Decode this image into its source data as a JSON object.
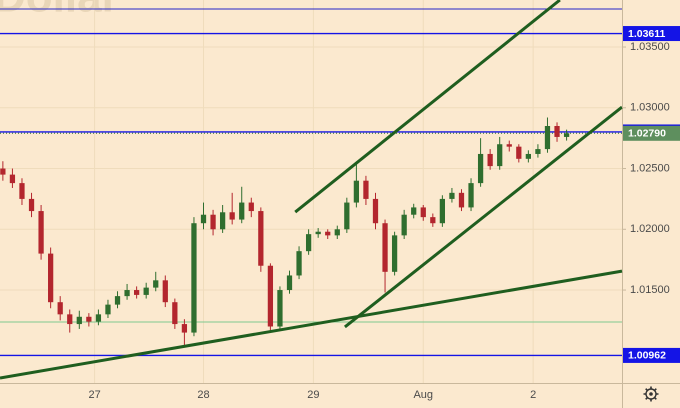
{
  "chart_data": {
    "type": "candlestick",
    "watermark": "Dollar",
    "ylim": [
      1.00735,
      1.03887
    ],
    "xlim": [
      -0.3,
      64.8
    ],
    "yticks": [
      {
        "value": 1.035,
        "label": "1.03500"
      },
      {
        "value": 1.03,
        "label": "1.03000"
      },
      {
        "value": 1.025,
        "label": "1.02500"
      },
      {
        "value": 1.02,
        "label": "1.02000"
      },
      {
        "value": 1.015,
        "label": "1.01500"
      }
    ],
    "xticks": [
      {
        "value": 9.6,
        "label": "27"
      },
      {
        "value": 21,
        "label": "28"
      },
      {
        "value": 32.5,
        "label": "29"
      },
      {
        "value": 44,
        "label": "Aug"
      },
      {
        "value": 55.5,
        "label": "2"
      }
    ],
    "grid": true,
    "up_color": "#2f6e2f",
    "down_color": "#b3262e",
    "open": [
      1.025,
      1.0245,
      1.0238,
      1.0225,
      1.0215,
      1.018,
      1.014,
      1.013,
      1.0122,
      1.0128,
      1.0124,
      1.013,
      1.0138,
      1.0145,
      1.015,
      1.0146,
      1.0152,
      1.0158,
      1.014,
      1.0122,
      1.0115,
      1.0205,
      1.0212,
      1.02,
      1.0214,
      1.0208,
      1.0222,
      1.0215,
      1.017,
      1.012,
      1.015,
      1.0162,
      1.0182,
      1.0196,
      1.0198,
      1.0195,
      1.02,
      1.0222,
      1.024,
      1.0225,
      1.0205,
      1.0165,
      1.0195,
      1.0212,
      1.0218,
      1.021,
      1.0205,
      1.0225,
      1.023,
      1.0218,
      1.0238,
      1.0262,
      1.0252,
      1.027,
      1.0268,
      1.0258,
      1.0262,
      1.0266,
      1.0285,
      1.0276
    ],
    "high": [
      1.0256,
      1.025,
      1.0242,
      1.023,
      1.022,
      1.0185,
      1.0145,
      1.0134,
      1.0133,
      1.0131,
      1.0134,
      1.0142,
      1.0149,
      1.0155,
      1.0153,
      1.0156,
      1.0165,
      1.0162,
      1.0143,
      1.0126,
      1.021,
      1.0222,
      1.0216,
      1.022,
      1.023,
      1.0235,
      1.0226,
      1.0218,
      1.0172,
      1.0153,
      1.0166,
      1.0186,
      1.02,
      1.0201,
      1.02,
      1.0203,
      1.0226,
      1.0255,
      1.0244,
      1.023,
      1.0208,
      1.0198,
      1.0216,
      1.0221,
      1.022,
      1.0213,
      1.0228,
      1.0234,
      1.0233,
      1.0242,
      1.0275,
      1.0266,
      1.0276,
      1.0273,
      1.027,
      1.0265,
      1.027,
      1.0292,
      1.0288,
      1.0282
    ],
    "low": [
      1.024,
      1.0234,
      1.022,
      1.021,
      1.0175,
      1.0135,
      1.0125,
      1.0115,
      1.0118,
      1.012,
      1.0121,
      1.0127,
      1.0135,
      1.0142,
      1.0143,
      1.0143,
      1.0149,
      1.0136,
      1.0118,
      1.0103,
      1.0112,
      1.02,
      1.0195,
      1.0197,
      1.0204,
      1.0205,
      1.021,
      1.0165,
      1.0115,
      1.0117,
      1.0147,
      1.0159,
      1.0179,
      1.0193,
      1.0192,
      1.0192,
      1.0197,
      1.0218,
      1.022,
      1.02,
      1.0148,
      1.0162,
      1.0192,
      1.0209,
      1.0207,
      1.0202,
      1.0202,
      1.0222,
      1.0215,
      1.0215,
      1.0235,
      1.0249,
      1.0249,
      1.0264,
      1.0255,
      1.0255,
      1.0259,
      1.0263,
      1.0272,
      1.0273
    ],
    "close": [
      1.0245,
      1.0238,
      1.0225,
      1.0215,
      1.018,
      1.014,
      1.013,
      1.0122,
      1.0128,
      1.0124,
      1.013,
      1.0138,
      1.0145,
      1.015,
      1.0146,
      1.0152,
      1.0158,
      1.014,
      1.0122,
      1.0115,
      1.0205,
      1.0212,
      1.02,
      1.0214,
      1.0208,
      1.0222,
      1.0215,
      1.017,
      1.012,
      1.015,
      1.0162,
      1.0182,
      1.0196,
      1.0198,
      1.0195,
      1.02,
      1.0222,
      1.024,
      1.0225,
      1.0205,
      1.0165,
      1.0195,
      1.0212,
      1.0218,
      1.021,
      1.0205,
      1.0225,
      1.023,
      1.0218,
      1.0238,
      1.0262,
      1.0252,
      1.027,
      1.0268,
      1.0258,
      1.0262,
      1.0266,
      1.0285,
      1.0276,
      1.0279
    ],
    "levels": [
      {
        "value": 1.03813,
        "color": "#2525c8"
      },
      {
        "value": 1.03611,
        "color": "#1414e6",
        "tag": true
      },
      {
        "value": 1.02801,
        "color": "#1414e6",
        "tag": true
      },
      {
        "value": 1.0279,
        "label": "1.02790",
        "color": "#5e8f5e",
        "tag": true
      },
      {
        "value": 1.01237,
        "color": "#7fc98f"
      },
      {
        "value": 1.00962,
        "color": "#1414e6",
        "tag": true
      }
    ],
    "trendlines": [
      {
        "x": [
          30.6,
          58.3
        ],
        "y": [
          1.02142,
          1.03887
        ],
        "color": "#1f5e1f"
      },
      {
        "x": [
          35.8,
          64.8
        ],
        "y": [
          1.01196,
          1.03006
        ],
        "color": "#1f5e1f"
      },
      {
        "x": [
          -0.3,
          64.8
        ],
        "y": [
          1.00776,
          1.01656
        ],
        "color": "#1f5e1f"
      }
    ]
  }
}
